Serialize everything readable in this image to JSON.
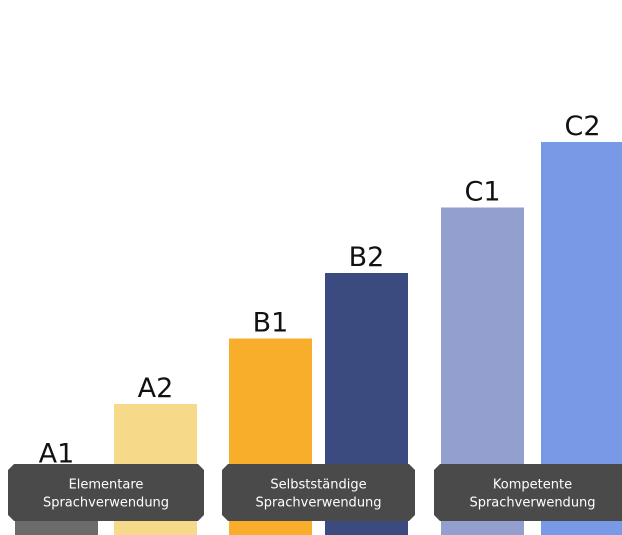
{
  "chart_data": {
    "type": "bar",
    "title": "",
    "xlabel": "",
    "ylabel": "",
    "ylim": [
      0,
      6
    ],
    "grid": false,
    "legend": "none",
    "categories": [
      "A1",
      "A2",
      "B1",
      "B2",
      "C1",
      "C2"
    ],
    "values": [
      1,
      2,
      3,
      4,
      5,
      6
    ],
    "colors": [
      "#6b6b6b",
      "#f7d98a",
      "#f9ae2b",
      "#3b4b80",
      "#939fcf",
      "#7799e6"
    ],
    "groups": [
      {
        "name_line1": "Elementare",
        "name_line2": "Sprachverwendung",
        "categories": [
          "A1",
          "A2"
        ]
      },
      {
        "name_line1": "Selbstständige",
        "name_line2": "Sprachverwendung",
        "categories": [
          "B1",
          "B2"
        ]
      },
      {
        "name_line1": "Kompetente",
        "name_line2": "Sprachverwendung",
        "categories": [
          "C1",
          "C2"
        ]
      }
    ],
    "band_color": "#4a4a4a"
  }
}
